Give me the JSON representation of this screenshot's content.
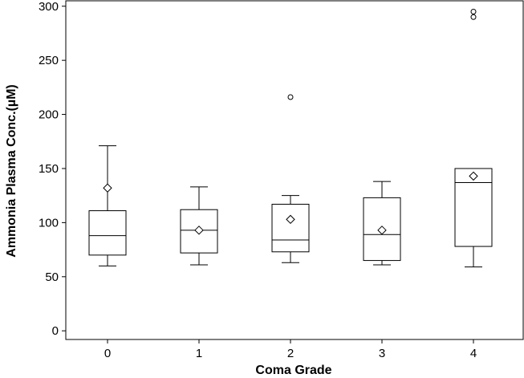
{
  "chart_data": {
    "type": "boxplot",
    "title": "",
    "xlabel": "Coma Grade",
    "ylabel": "Ammonia Plasma Conc.(µM)",
    "categories": [
      "0",
      "1",
      "2",
      "3",
      "4"
    ],
    "ylim": [
      -8,
      305
    ],
    "yticks": [
      0,
      50,
      100,
      150,
      200,
      250,
      300
    ],
    "grid": false,
    "legend": "none",
    "boxes": [
      {
        "category": "0",
        "whisker_low": 60,
        "q1": 70,
        "median": 88,
        "q3": 111,
        "whisker_high": 171,
        "mean": 132,
        "outliers": []
      },
      {
        "category": "1",
        "whisker_low": 61,
        "q1": 72,
        "median": 93,
        "q3": 112,
        "whisker_high": 133,
        "mean": 93,
        "outliers": []
      },
      {
        "category": "2",
        "whisker_low": 63,
        "q1": 73,
        "median": 84,
        "q3": 117,
        "whisker_high": 125,
        "mean": 103,
        "outliers": [
          216
        ]
      },
      {
        "category": "3",
        "whisker_low": 61,
        "q1": 65,
        "median": 89,
        "q3": 123,
        "whisker_high": 138,
        "mean": 93,
        "outliers": []
      },
      {
        "category": "4",
        "whisker_low": 59,
        "q1": 78,
        "median": 137,
        "q3": 150,
        "whisker_high": 150,
        "mean": 143,
        "outliers": [
          290,
          295
        ]
      }
    ]
  }
}
